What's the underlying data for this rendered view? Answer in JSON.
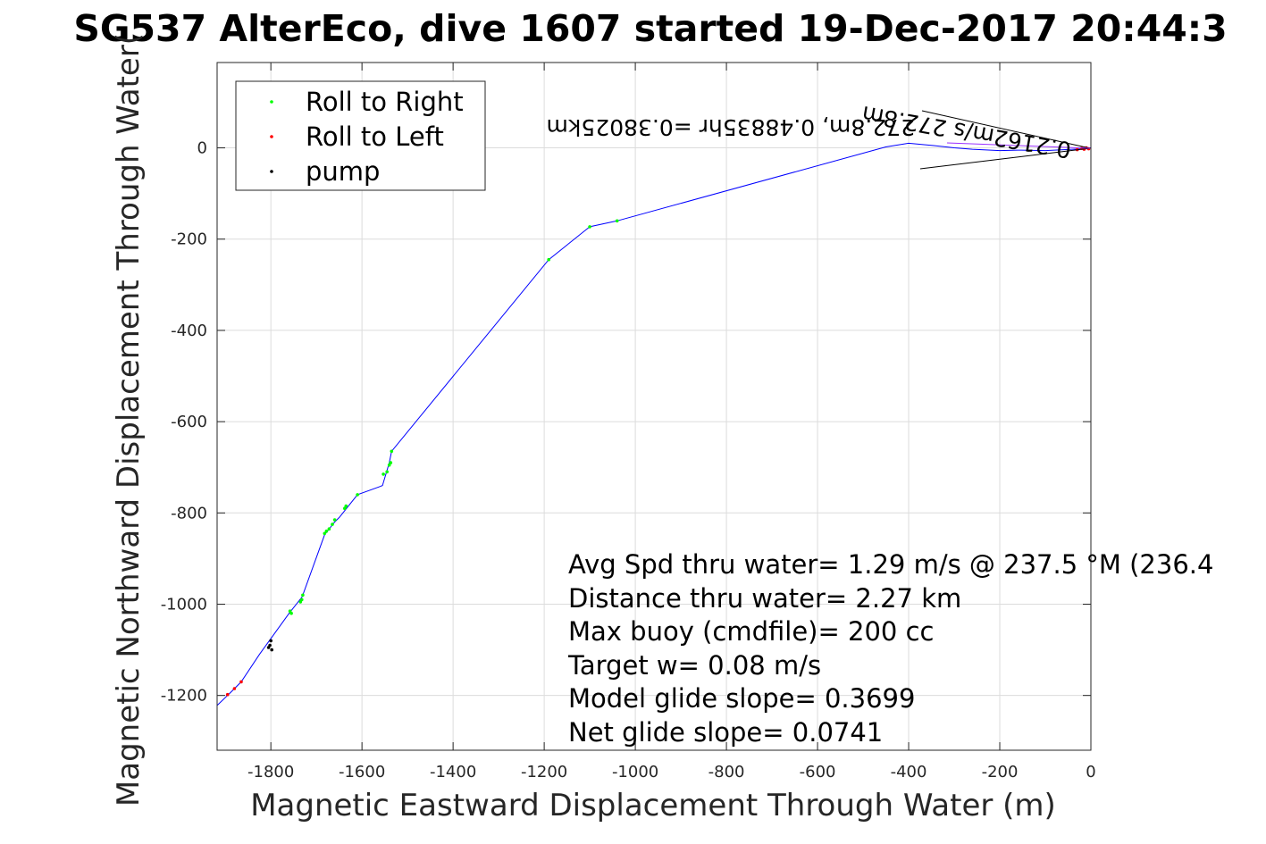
{
  "chart_data": {
    "type": "line",
    "title": "SG537 AlterEco, dive 1607 started 19-Dec-2017 20:44:3",
    "xlabel": "Magnetic Eastward Displacement Through Water (m)",
    "ylabel": "Magnetic Northward Displacement Through Water(",
    "xlim": [
      -1918,
      0
    ],
    "ylim": [
      -1320,
      187
    ],
    "x_ticks": [
      -1800,
      -1600,
      -1400,
      -1200,
      -1000,
      -800,
      -600,
      -400,
      -200,
      0
    ],
    "y_ticks": [
      0,
      -200,
      -400,
      -600,
      -800,
      -1000,
      -1200
    ],
    "grid": true,
    "legend_position": "top-left",
    "legend": [
      {
        "label": "Roll to Right",
        "color": "#00ff00",
        "marker": "dot"
      },
      {
        "label": "Roll to Left",
        "color": "#ff0000",
        "marker": "dot"
      },
      {
        "label": "pump",
        "color": "#000000",
        "marker": "dot"
      }
    ],
    "series": [
      {
        "color": "#0000ff",
        "x": [
          0,
          -20,
          -60,
          -100,
          -160,
          -200,
          -260,
          -300,
          -345,
          -400,
          -450,
          -1040,
          -1100,
          -1190,
          -1535,
          -1540,
          -1555,
          -1560,
          -1610,
          -1650,
          -1660,
          -1680,
          -1682,
          -1730,
          -1732,
          -1760,
          -1825,
          -1865,
          -1890,
          -1918
        ],
        "y": [
          0,
          -2,
          -4,
          -6,
          -5,
          -6,
          -3,
          0,
          5,
          10,
          2,
          -160,
          -173,
          -245,
          -665,
          -690,
          -740,
          -742,
          -760,
          -810,
          -820,
          -845,
          -848,
          -980,
          -985,
          -1020,
          -1110,
          -1170,
          -1195,
          -1222
        ]
      }
    ],
    "roll_right_points": {
      "x": [
        -1040,
        -1100,
        -1190,
        -1535,
        -1537,
        -1540,
        -1545,
        -1553,
        -1610,
        -1635,
        -1638,
        -1660,
        -1665,
        -1672,
        -1678,
        -1682,
        -1730,
        -1732,
        -1735,
        -1755,
        -1758
      ],
      "y": [
        -160,
        -173,
        -245,
        -665,
        -690,
        -695,
        -710,
        -715,
        -760,
        -785,
        -790,
        -815,
        -825,
        -835,
        -840,
        -845,
        -980,
        -990,
        -995,
        -1020,
        -1015
      ]
    },
    "roll_left_points": {
      "x": [
        -5,
        -10,
        -15,
        -20,
        -30,
        -1865,
        -1880,
        -1895
      ],
      "y": [
        -2,
        0,
        -3,
        -1,
        -4,
        -1170,
        -1185,
        -1198
      ]
    },
    "pump_points": {
      "x": [
        -1800,
        -1802,
        -1805,
        -1798
      ],
      "y": [
        -1080,
        -1090,
        -1095,
        -1100
      ]
    },
    "annotations": [
      "Avg Spd thru water=  1.29 m/s @ 237.5 °M (236.4",
      "Distance thru water=  2.27 km",
      "Max buoy (cmdfile)= 200 cc",
      "Target w= 0.08 m/s",
      "Model glide slope= 0.3699",
      "Net glide slope= 0.0741"
    ],
    "arrow_labels": {
      "upper": "272.8m, 0.48835hr =0.38025km",
      "lower": "0.2162m/s 272.8m"
    }
  }
}
